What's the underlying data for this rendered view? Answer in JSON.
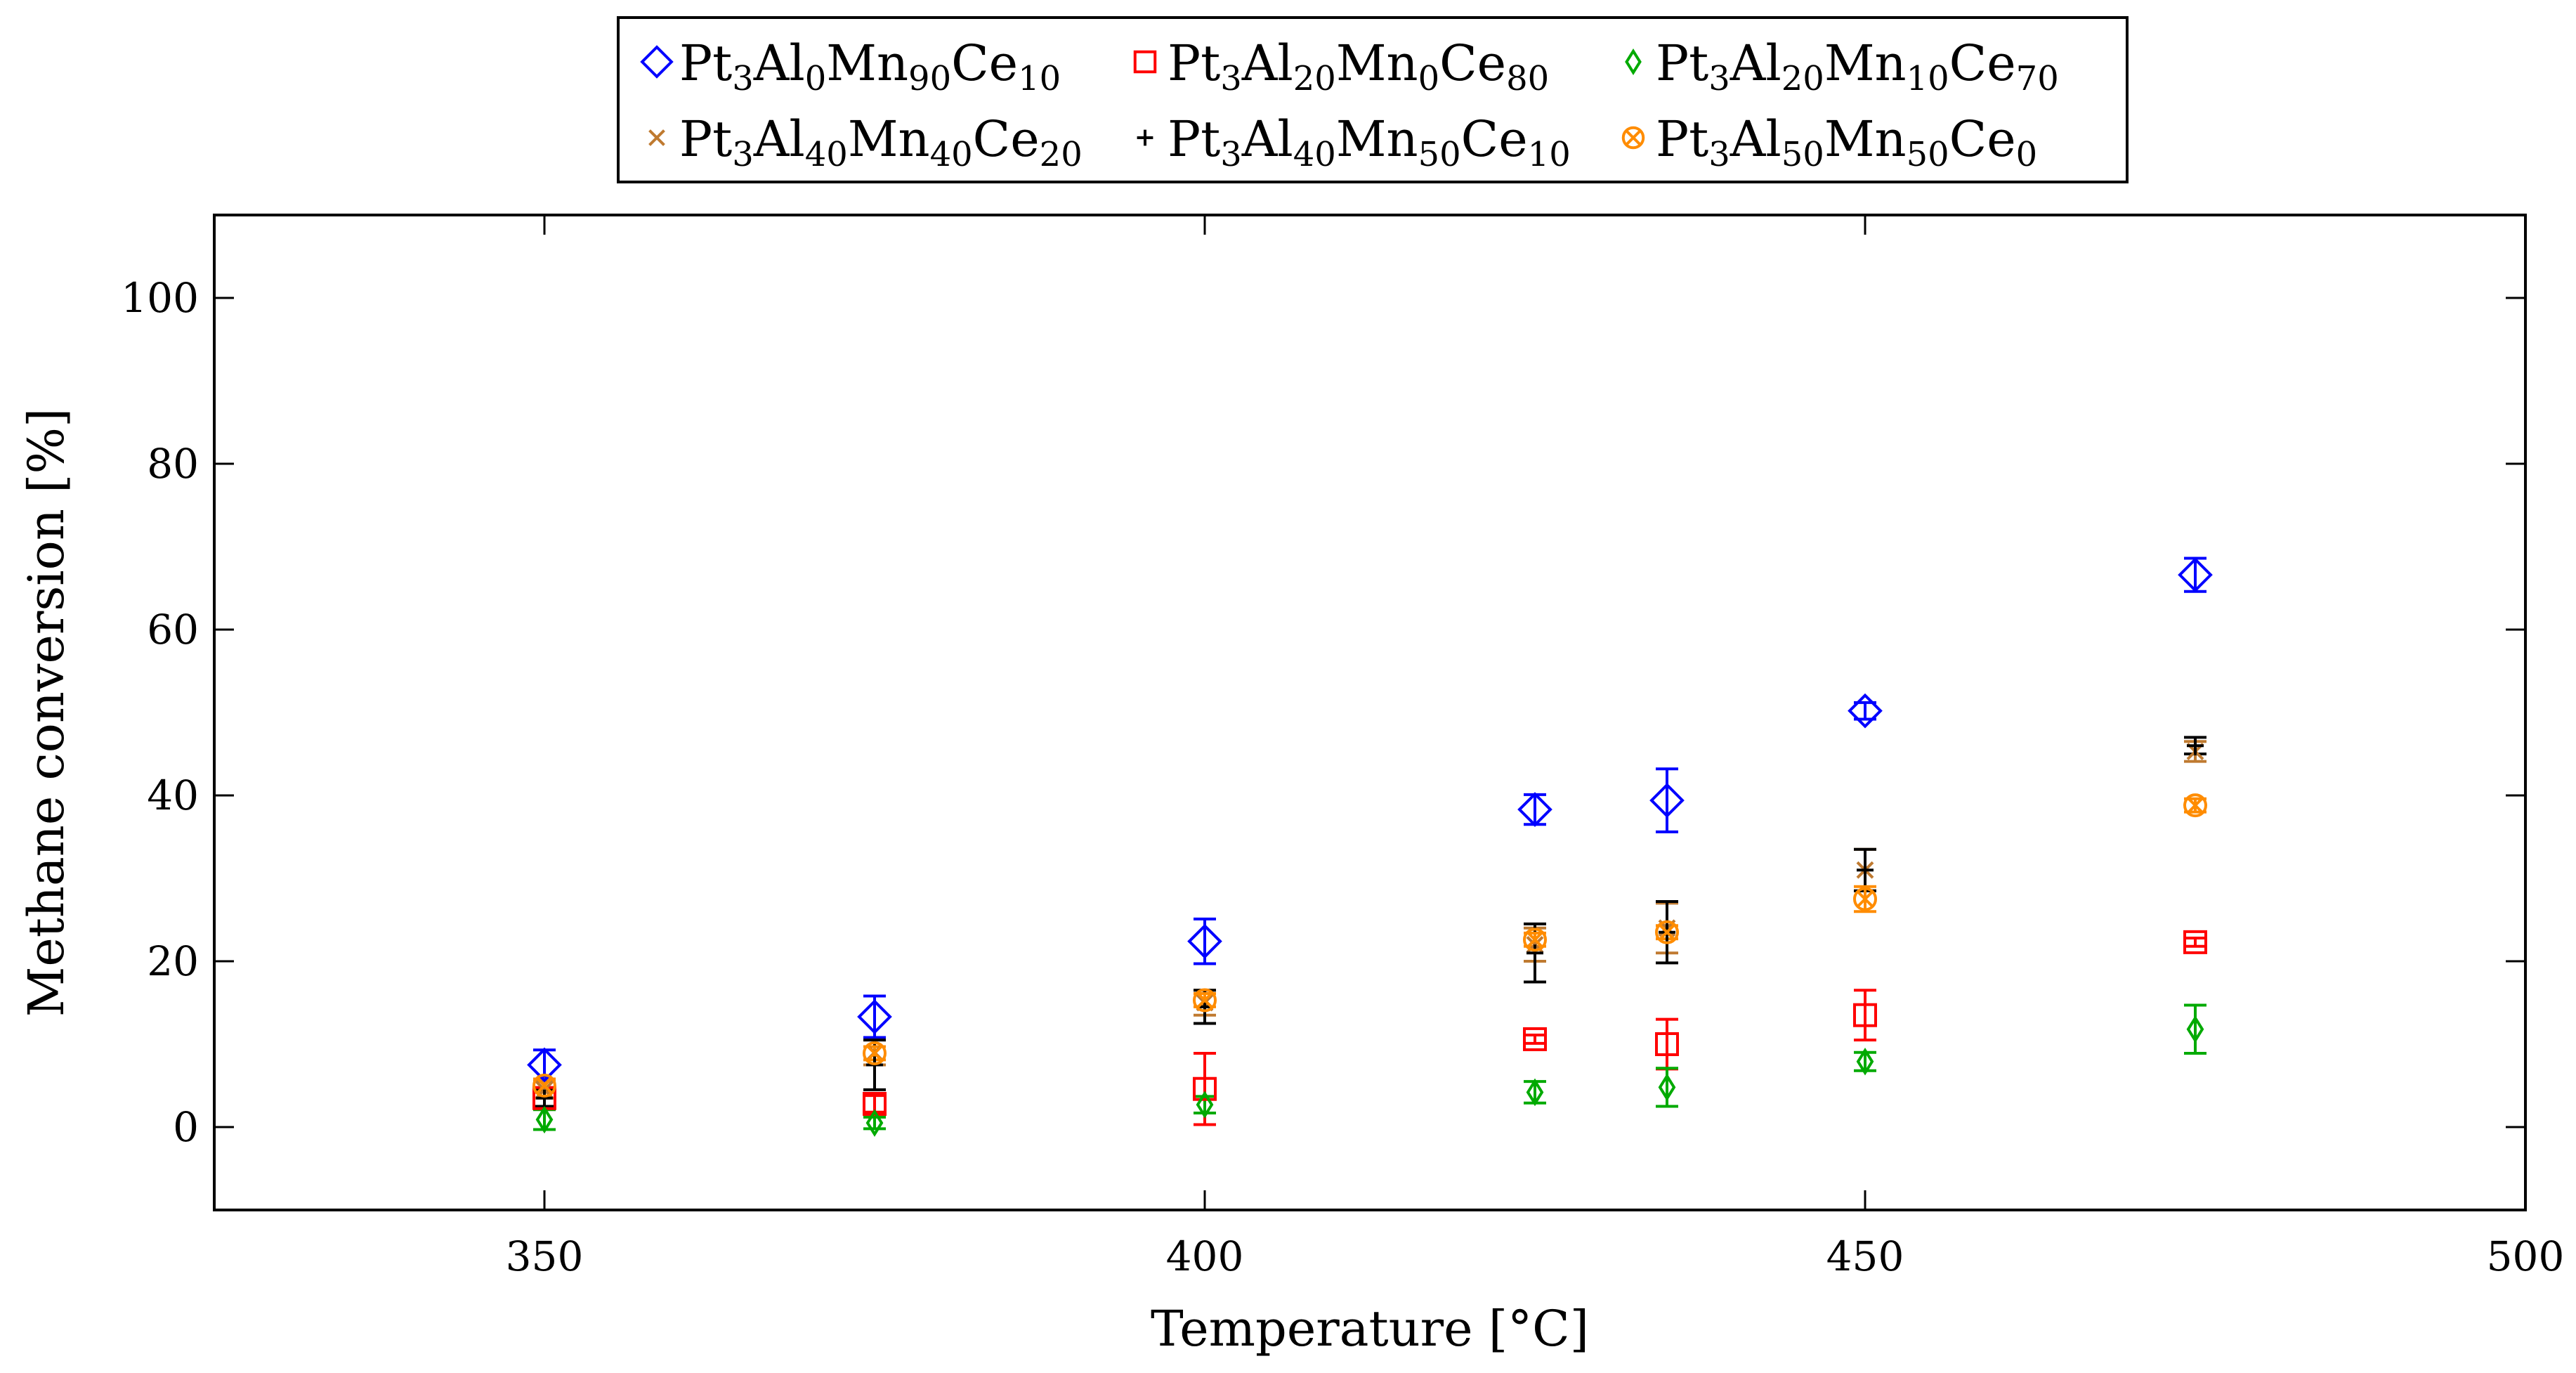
{
  "chart_data": {
    "type": "scatter",
    "title": "",
    "xlabel": "Temperature [°C]",
    "ylabel": "Methane conversion [%]",
    "xlim": [
      325,
      500
    ],
    "ylim": [
      -10,
      110
    ],
    "xticks": [
      350,
      400,
      450,
      500
    ],
    "yticks": [
      0,
      20,
      40,
      60,
      80,
      100
    ],
    "grid": false,
    "legend_position": "top-center",
    "series": [
      {
        "name": "Pt3Al0Mn90Ce10",
        "label_parts": [
          [
            "Pt",
            ""
          ],
          [
            "3",
            "sub"
          ],
          [
            "Al",
            ""
          ],
          [
            "0",
            "sub"
          ],
          [
            "Mn",
            ""
          ],
          [
            "90",
            "sub"
          ],
          [
            "Ce",
            ""
          ],
          [
            "10",
            "sub"
          ]
        ],
        "color": "#0000ff",
        "marker": "diamond",
        "points": [
          {
            "x": 350,
            "y": 7.5,
            "err": 1.8
          },
          {
            "x": 375,
            "y": 13.3,
            "err": 2.5
          },
          {
            "x": 400,
            "y": 22.4,
            "err": 2.7
          },
          {
            "x": 425,
            "y": 38.3,
            "err": 1.8
          },
          {
            "x": 435,
            "y": 39.4,
            "err": 3.8
          },
          {
            "x": 450,
            "y": 50.2,
            "err": 1.0
          },
          {
            "x": 475,
            "y": 66.6,
            "err": 2.0
          }
        ]
      },
      {
        "name": "Pt3Al20Mn0Ce80",
        "label_parts": [
          [
            "Pt",
            ""
          ],
          [
            "3",
            "sub"
          ],
          [
            "Al",
            ""
          ],
          [
            "20",
            "sub"
          ],
          [
            "Mn",
            ""
          ],
          [
            "0",
            "sub"
          ],
          [
            "Ce",
            ""
          ],
          [
            "80",
            "sub"
          ]
        ],
        "color": "#ff0000",
        "marker": "square",
        "points": [
          {
            "x": 350,
            "y": 3.5,
            "err": 1.0
          },
          {
            "x": 375,
            "y": 2.8,
            "err": 1.0
          },
          {
            "x": 400,
            "y": 4.6,
            "err": 4.3
          },
          {
            "x": 425,
            "y": 10.6,
            "err": 0.5
          },
          {
            "x": 435,
            "y": 10.0,
            "err": 3.0
          },
          {
            "x": 450,
            "y": 13.5,
            "err": 3.0
          },
          {
            "x": 475,
            "y": 22.3,
            "err": 0.5
          }
        ]
      },
      {
        "name": "Pt3Al20Mn10Ce70",
        "label_parts": [
          [
            "Pt",
            ""
          ],
          [
            "3",
            "sub"
          ],
          [
            "Al",
            ""
          ],
          [
            "20",
            "sub"
          ],
          [
            "Mn",
            ""
          ],
          [
            "10",
            "sub"
          ],
          [
            "Ce",
            ""
          ],
          [
            "70",
            "sub"
          ]
        ],
        "color": "#00aa00",
        "marker": "thin-diamond",
        "points": [
          {
            "x": 350,
            "y": 0.9,
            "err": 1.2
          },
          {
            "x": 375,
            "y": 0.5,
            "err": 0.7
          },
          {
            "x": 400,
            "y": 2.7,
            "err": 1.0
          },
          {
            "x": 425,
            "y": 4.2,
            "err": 1.3
          },
          {
            "x": 435,
            "y": 4.8,
            "err": 2.3
          },
          {
            "x": 450,
            "y": 7.9,
            "err": 1.1
          },
          {
            "x": 475,
            "y": 11.8,
            "err": 2.9
          }
        ]
      },
      {
        "name": "Pt3Al40Mn40Ce20",
        "label_parts": [
          [
            "Pt",
            ""
          ],
          [
            "3",
            "sub"
          ],
          [
            "Al",
            ""
          ],
          [
            "40",
            "sub"
          ],
          [
            "Mn",
            ""
          ],
          [
            "40",
            "sub"
          ],
          [
            "Ce",
            ""
          ],
          [
            "20",
            "sub"
          ]
        ],
        "color": "#bf7a30",
        "marker": "x",
        "points": [
          {
            "x": 350,
            "y": 4.5,
            "err": 1.0
          },
          {
            "x": 375,
            "y": 9.0,
            "err": 1.5
          },
          {
            "x": 400,
            "y": 15.0,
            "err": 1.5
          },
          {
            "x": 425,
            "y": 22.0,
            "err": 2.0
          },
          {
            "x": 435,
            "y": 24.0,
            "err": 3.0
          },
          {
            "x": 450,
            "y": 31.0,
            "err": 2.5
          },
          {
            "x": 475,
            "y": 45.3,
            "err": 1.2
          }
        ]
      },
      {
        "name": "Pt3Al40Mn50Ce10",
        "label_parts": [
          [
            "Pt",
            ""
          ],
          [
            "3",
            "sub"
          ],
          [
            "Al",
            ""
          ],
          [
            "40",
            "sub"
          ],
          [
            "Mn",
            ""
          ],
          [
            "50",
            "sub"
          ],
          [
            "Ce",
            ""
          ],
          [
            "10",
            "sub"
          ]
        ],
        "color": "#000000",
        "marker": "plus",
        "points": [
          {
            "x": 350,
            "y": 3.5,
            "err": 1.0
          },
          {
            "x": 375,
            "y": 7.5,
            "err": 3.0
          },
          {
            "x": 400,
            "y": 14.5,
            "err": 2.0
          },
          {
            "x": 425,
            "y": 21.0,
            "err": 3.5
          },
          {
            "x": 435,
            "y": 23.5,
            "err": 3.7
          },
          {
            "x": 450,
            "y": 31.0,
            "err": 2.5
          },
          {
            "x": 475,
            "y": 46.0,
            "err": 1.0
          }
        ]
      },
      {
        "name": "Pt3Al50Mn50Ce0",
        "label_parts": [
          [
            "Pt",
            ""
          ],
          [
            "3",
            "sub"
          ],
          [
            "Al",
            ""
          ],
          [
            "50",
            "sub"
          ],
          [
            "Mn",
            ""
          ],
          [
            "50",
            "sub"
          ],
          [
            "Ce",
            ""
          ],
          [
            "0",
            "sub"
          ]
        ],
        "color": "#ff8c00",
        "marker": "otimes",
        "points": [
          {
            "x": 350,
            "y": 5.0,
            "err": 0.8
          },
          {
            "x": 375,
            "y": 8.9,
            "err": 0.8
          },
          {
            "x": 400,
            "y": 15.3,
            "err": 0.8
          },
          {
            "x": 425,
            "y": 22.6,
            "err": 0.8
          },
          {
            "x": 435,
            "y": 23.5,
            "err": 0.8
          },
          {
            "x": 450,
            "y": 27.5,
            "err": 1.5
          },
          {
            "x": 475,
            "y": 38.8,
            "err": 0.8
          }
        ]
      }
    ]
  }
}
